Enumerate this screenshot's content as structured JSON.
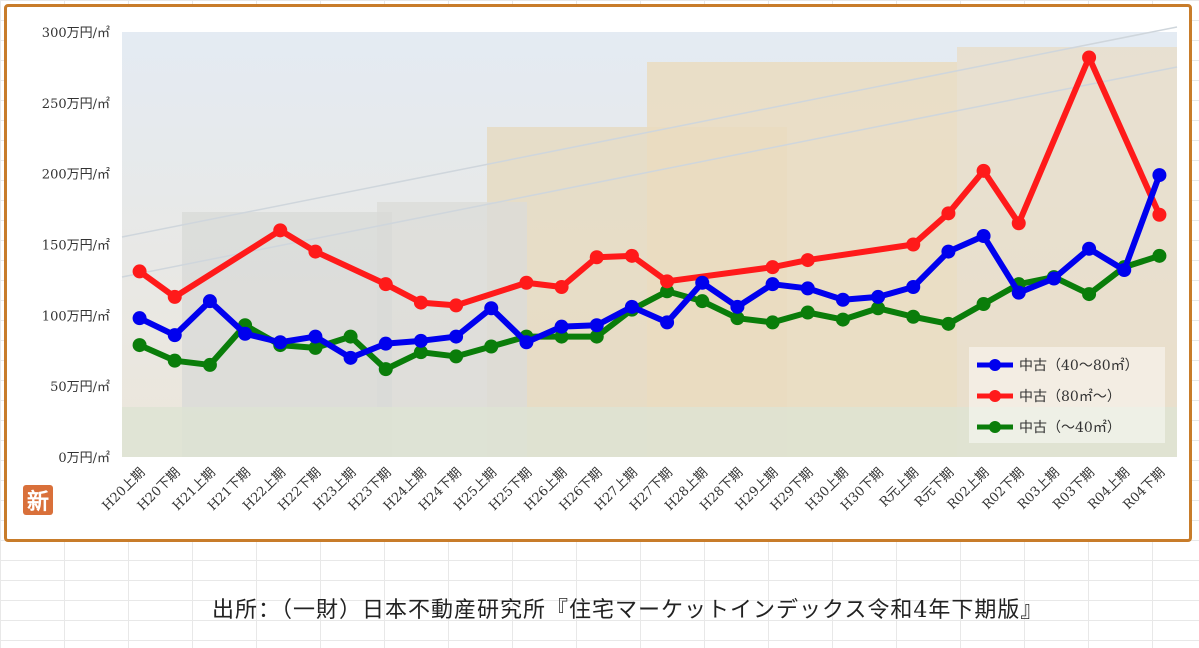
{
  "source_note": "出所：（一財）日本不動産研究所『住宅マーケットインデックス令和4年下期版』",
  "badge_label": "新",
  "chart_data": {
    "type": "line",
    "categories": [
      "H20上期",
      "H20下期",
      "H21上期",
      "H21下期",
      "H22上期",
      "H22下期",
      "H23上期",
      "H23下期",
      "H24上期",
      "H24下期",
      "H25上期",
      "H25下期",
      "H26上期",
      "H26下期",
      "H27上期",
      "H27下期",
      "H28上期",
      "H28下期",
      "H29上期",
      "H29下期",
      "H30上期",
      "H30下期",
      "R元上期",
      "R元下期",
      "R02上期",
      "R02下期",
      "R03上期",
      "R03下期",
      "R04上期",
      "R04下期"
    ],
    "y_tick_labels": [
      "0万円/㎡",
      "50万円/㎡",
      "100万円/㎡",
      "150万円/㎡",
      "200万円/㎡",
      "250万円/㎡",
      "300万円/㎡"
    ],
    "ylim": [
      0,
      300
    ],
    "grid": false,
    "legend_position": "bottom-right",
    "series": [
      {
        "name": "中古（40～80㎡）",
        "color": "#0000ee",
        "values": [
          98,
          86,
          110,
          87,
          81,
          85,
          70,
          80,
          82,
          85,
          105,
          81,
          92,
          93,
          106,
          95,
          123,
          106,
          122,
          119,
          111,
          113,
          120,
          145,
          156,
          116,
          126,
          147,
          132,
          199
        ]
      },
      {
        "name": "中古（80㎡～）",
        "color": "#ff1a1a",
        "values": [
          131,
          113,
          null,
          null,
          160,
          145,
          null,
          122,
          109,
          107,
          null,
          123,
          120,
          141,
          142,
          124,
          null,
          null,
          134,
          139,
          null,
          null,
          150,
          172,
          202,
          165,
          null,
          282,
          null,
          171
        ]
      },
      {
        "name": "中古（～40㎡）",
        "color": "#0a7d0a",
        "values": [
          79,
          68,
          65,
          93,
          79,
          77,
          85,
          62,
          74,
          71,
          78,
          85,
          85,
          85,
          104,
          117,
          110,
          98,
          95,
          102,
          97,
          105,
          99,
          94,
          108,
          122,
          127,
          115,
          134,
          142
        ]
      }
    ]
  }
}
